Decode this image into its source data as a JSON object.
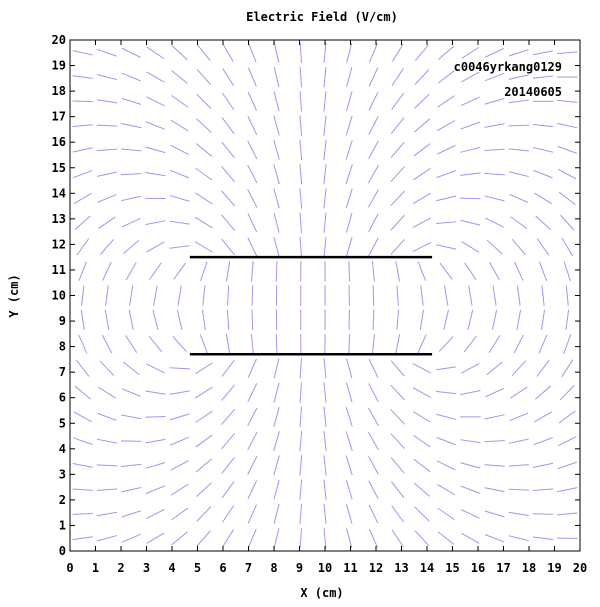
{
  "chart_data": {
    "type": "vector-field",
    "title": "Electric Field (V/cm)",
    "xlabel": "X (cm)",
    "ylabel": "Y (cm)",
    "xlim": [
      0,
      20
    ],
    "ylim": [
      0,
      20
    ],
    "xticks": [
      0,
      1,
      2,
      3,
      4,
      5,
      6,
      7,
      8,
      9,
      10,
      11,
      12,
      13,
      14,
      15,
      16,
      17,
      18,
      19,
      20
    ],
    "yticks": [
      0,
      1,
      2,
      3,
      4,
      5,
      6,
      7,
      8,
      9,
      10,
      11,
      12,
      13,
      14,
      15,
      16,
      17,
      18,
      19,
      20
    ],
    "grid": false,
    "annotations": [
      "c0046yrkang0129",
      "20140605"
    ],
    "field_color": "#9999ee",
    "plate_color": "#000000",
    "plates": [
      {
        "x": [
          4.7,
          14.2
        ],
        "y": 11.5
      },
      {
        "x": [
          4.7,
          14.2
        ],
        "y": 7.7
      }
    ]
  }
}
